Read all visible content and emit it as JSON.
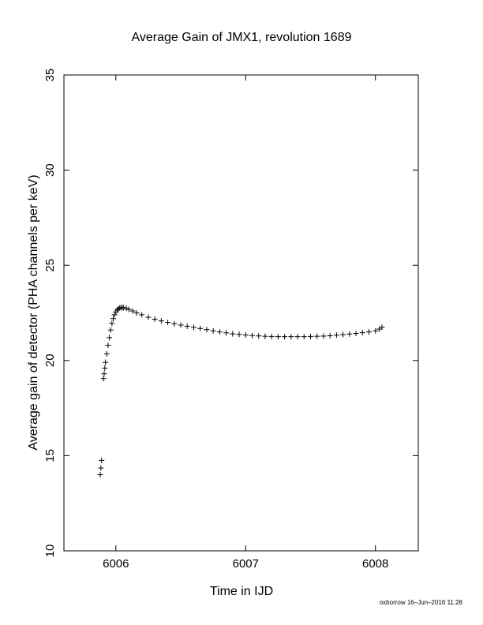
{
  "chart_data": {
    "type": "scatter",
    "title": "Average Gain of JMX1, revolution 1689",
    "xlabel": "Time in IJD",
    "ylabel": "Average gain of detector (PHA channels per keV)",
    "xlim": [
      6005.6,
      6008.33
    ],
    "ylim": [
      10,
      35
    ],
    "x_ticks": [
      6006,
      6007,
      6008
    ],
    "y_ticks": [
      10,
      15,
      20,
      25,
      30,
      35
    ],
    "x_tick_labels": [
      "6006",
      "6007",
      "6008"
    ],
    "y_tick_labels": [
      "10",
      "15",
      "20",
      "25",
      "30",
      "35"
    ],
    "marker": "plus",
    "color": "#000000",
    "series": [
      {
        "x": [
          5.88,
          5.885,
          5.89,
          5.905,
          5.91,
          5.915,
          5.92,
          5.93,
          5.94,
          5.95,
          5.96,
          5.97,
          5.98,
          5.99,
          6.0,
          6.01,
          6.02,
          6.03,
          6.04,
          6.05,
          6.06,
          6.08,
          6.1,
          6.13,
          6.16,
          6.2,
          6.25,
          6.3,
          6.35,
          6.4,
          6.45,
          6.5,
          6.55,
          6.6,
          6.65,
          6.7,
          6.75,
          6.8,
          6.85,
          6.9,
          6.95,
          7.0,
          7.05,
          7.1,
          7.15,
          7.2,
          7.25,
          7.3,
          7.35,
          7.4,
          7.45,
          7.5,
          7.55,
          7.6,
          7.65,
          7.7,
          7.75,
          7.8,
          7.85,
          7.9,
          7.95,
          8.0,
          8.03,
          8.05
        ],
        "y": [
          14.0,
          14.35,
          14.75,
          19.05,
          19.3,
          19.6,
          19.9,
          20.35,
          20.8,
          21.2,
          21.6,
          21.95,
          22.2,
          22.4,
          22.55,
          22.65,
          22.72,
          22.76,
          22.78,
          22.78,
          22.77,
          22.74,
          22.68,
          22.6,
          22.5,
          22.4,
          22.27,
          22.17,
          22.08,
          22.0,
          21.93,
          21.86,
          21.8,
          21.74,
          21.68,
          21.62,
          21.56,
          21.5,
          21.45,
          21.4,
          21.37,
          21.34,
          21.31,
          21.29,
          21.27,
          21.26,
          21.25,
          21.25,
          21.25,
          21.25,
          21.25,
          21.26,
          21.27,
          21.28,
          21.3,
          21.33,
          21.36,
          21.39,
          21.42,
          21.46,
          21.5,
          21.56,
          21.65,
          21.75
        ]
      }
    ]
  },
  "footer": "oxborrow 16–Jun–2016 11:28"
}
